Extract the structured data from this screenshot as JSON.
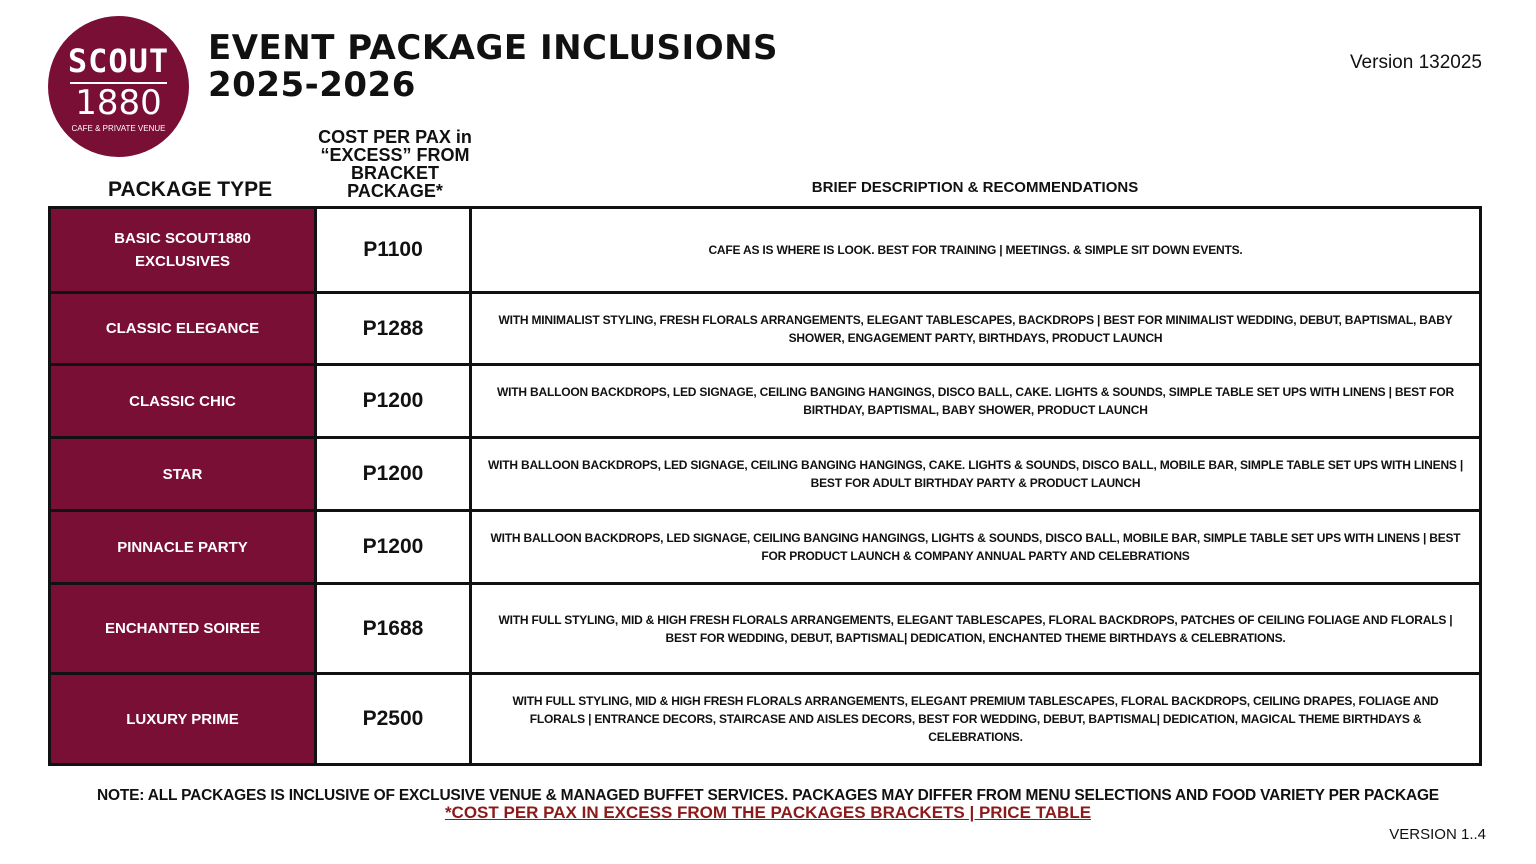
{
  "logo": {
    "line1": "SCOUT",
    "line2": "1880",
    "line3": "CAFE & PRIVATE VENUE"
  },
  "title": {
    "line1": "EVENT PACKAGE INCLUSIONS",
    "line2": "2025-2026"
  },
  "version": "Version 132025",
  "headers": {
    "package": "PACKAGE TYPE",
    "cost": "COST PER PAX in “EXCESS” FROM BRACKET PACKAGE*",
    "description": "BRIEF DESCRIPTION & RECOMMENDATIONS"
  },
  "rows": [
    {
      "name": "BASIC SCOUT1880 EXCLUSIVES",
      "cost": "P1100",
      "desc": "CAFE AS IS WHERE IS LOOK. BEST FOR TRAINING | MEETINGS. & SIMPLE SIT DOWN EVENTS."
    },
    {
      "name": "CLASSIC ELEGANCE",
      "cost": "P1288",
      "desc": "WITH MINIMALIST STYLING, FRESH FLORALS ARRANGEMENTS, ELEGANT TABLESCAPES, BACKDROPS | BEST FOR MINIMALIST WEDDING, DEBUT, BAPTISMAL, BABY SHOWER, ENGAGEMENT PARTY, BIRTHDAYS, PRODUCT LAUNCH"
    },
    {
      "name": "CLASSIC CHIC",
      "cost": "P1200",
      "desc": "WITH BALLOON BACKDROPS, LED SIGNAGE,  CEILING BANGING HANGINGS, DISCO BALL,  CAKE. LIGHTS & SOUNDS, SIMPLE TABLE SET UPS WITH LINENS | BEST FOR BIRTHDAY, BAPTISMAL,  BABY SHOWER, PRODUCT LAUNCH"
    },
    {
      "name": "STAR",
      "cost": "P1200",
      "desc": "WITH BALLOON BACKDROPS, LED SIGNAGE, CEILING BANGING HANGINGS, CAKE. LIGHTS & SOUNDS, DISCO BALL, MOBILE BAR, SIMPLE TABLE SET UPS WITH LINENS | BEST FOR ADULT BIRTHDAY PARTY & PRODUCT LAUNCH"
    },
    {
      "name": "PINNACLE PARTY",
      "cost": "P1200",
      "desc": "WITH BALLOON BACKDROPS, LED SIGNAGE, CEILING BANGING HANGINGS,  LIGHTS & SOUNDS, DISCO BALL, MOBILE BAR, SIMPLE TABLE SET UPS WITH LINENS | BEST FOR PRODUCT LAUNCH & COMPANY ANNUAL PARTY AND CELEBRATIONS"
    },
    {
      "name": "ENCHANTED SOIREE",
      "cost": "P1688",
      "desc": "WITH FULL STYLING, MID & HIGH FRESH FLORALS ARRANGEMENTS, ELEGANT TABLESCAPES, FLORAL BACKDROPS, PATCHES OF CEILING FOLIAGE AND FLORALS  | BEST FOR WEDDING, DEBUT, BAPTISMAL| DEDICATION, ENCHANTED THEME BIRTHDAYS & CELEBRATIONS."
    },
    {
      "name": "LUXURY PRIME",
      "cost": "P2500",
      "desc": "WITH FULL STYLING, MID & HIGH FRESH FLORALS ARRANGEMENTS, ELEGANT PREMIUM TABLESCAPES, FLORAL BACKDROPS, CEILING DRAPES, FOLIAGE AND FLORALS | ENTRANCE DECORS, STAIRCASE AND AISLES DECORS, BEST FOR WEDDING, DEBUT, BAPTISMAL| DEDICATION, MAGICAL THEME BIRTHDAYS & CELEBRATIONS."
    }
  ],
  "note": "NOTE: ALL PACKAGES IS INCLUSIVE OF EXCLUSIVE VENUE & MANAGED BUFFET SERVICES. PACKAGES MAY DIFFER FROM MENU SELECTIONS AND FOOD VARIETY PER PACKAGE",
  "price_link": "*COST PER PAX IN EXCESS FROM THE PACKAGES BRACKETS | PRICE TABLE",
  "footer_version": "VERSION 1..4",
  "colors": {
    "brand": "#7a0f35",
    "link": "#8b1a1a"
  }
}
